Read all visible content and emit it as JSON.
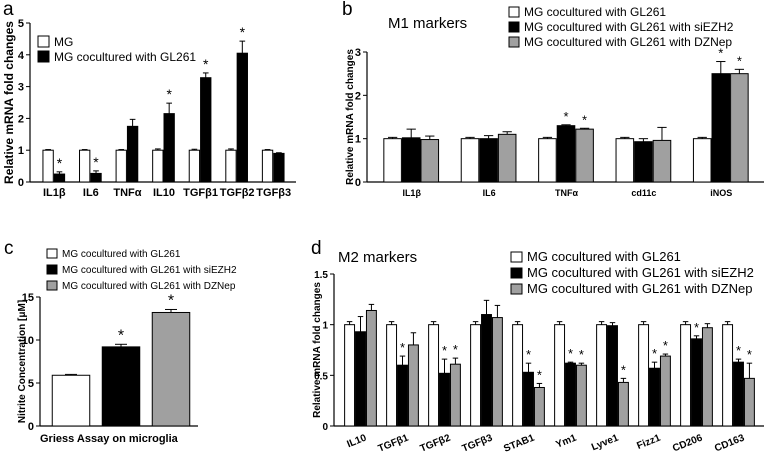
{
  "chart_data": [
    {
      "panel": "a",
      "type": "bar",
      "title": "",
      "ylabel": "Relative mRNA fold changes",
      "ylim": [
        0,
        5
      ],
      "yticks": [
        0,
        1,
        2,
        3,
        4,
        5
      ],
      "categories": [
        "IL1β",
        "IL6",
        "TNFα",
        "IL10",
        "TGFβ1",
        "TGFβ2",
        "TGFβ3"
      ],
      "series": [
        {
          "name": "MG",
          "color": "#ffffff",
          "values": [
            1.0,
            1.0,
            1.0,
            1.0,
            1.0,
            1.0,
            1.0
          ],
          "errors": [
            0.02,
            0.02,
            0.02,
            0.04,
            0.03,
            0.04,
            0.02
          ]
        },
        {
          "name": "MG cocultured with GL261",
          "color": "#000000",
          "values": [
            0.25,
            0.27,
            1.75,
            2.15,
            3.28,
            4.05,
            0.9
          ],
          "errors": [
            0.07,
            0.08,
            0.22,
            0.33,
            0.15,
            0.38,
            0.02
          ]
        }
      ],
      "significance": [
        [
          false,
          true
        ],
        [
          false,
          true
        ],
        [
          false,
          false
        ],
        [
          false,
          true
        ],
        [
          false,
          true
        ],
        [
          false,
          true
        ],
        [
          false,
          false
        ]
      ],
      "legend": "top-left"
    },
    {
      "panel": "b",
      "type": "bar",
      "title": "M1 markers",
      "ylabel": "Relative mRNA fold changes",
      "ylim": [
        0,
        3
      ],
      "yticks": [
        0,
        1,
        2,
        3
      ],
      "categories": [
        "IL1β",
        "IL6",
        "TNFα",
        "cd11c",
        "iNOS"
      ],
      "series": [
        {
          "name": "MG cocultured with GL261",
          "color": "#ffffff",
          "values": [
            1.0,
            1.0,
            1.0,
            1.0,
            1.0
          ],
          "errors": [
            0.03,
            0.03,
            0.03,
            0.03,
            0.03
          ]
        },
        {
          "name": "MG cocultured with GL261 with siEZH2",
          "color": "#000000",
          "values": [
            1.02,
            1.0,
            1.3,
            0.93,
            2.5
          ],
          "errors": [
            0.2,
            0.07,
            0.02,
            0.07,
            0.28
          ]
        },
        {
          "name": "MG cocultured with GL261 with DZNep",
          "color": "#a0a0a0",
          "values": [
            0.98,
            1.1,
            1.22,
            0.96,
            2.5
          ],
          "errors": [
            0.08,
            0.06,
            0.02,
            0.3,
            0.1
          ]
        }
      ],
      "significance": [
        [
          false,
          false,
          false
        ],
        [
          false,
          false,
          false
        ],
        [
          false,
          true,
          true
        ],
        [
          false,
          false,
          false
        ],
        [
          false,
          true,
          true
        ]
      ],
      "legend": "top-right"
    },
    {
      "panel": "c",
      "type": "bar",
      "title": "",
      "xlabel": "Griess Assay on microglia",
      "ylabel": "Nitrite Concentration [μM]",
      "ylim": [
        0,
        15
      ],
      "yticks": [
        0,
        5,
        10,
        15
      ],
      "categories": [
        "MG cocultured with GL261",
        "MG cocultured with GL261 with siEZH2",
        "MG cocultured with GL261 with DZNep"
      ],
      "values": [
        5.9,
        9.2,
        13.2
      ],
      "errors": [
        0.1,
        0.3,
        0.35
      ],
      "colors": [
        "#ffffff",
        "#000000",
        "#a0a0a0"
      ],
      "significance": [
        false,
        true,
        true
      ],
      "legend": "top"
    },
    {
      "panel": "d",
      "type": "bar",
      "title": "M2 markers",
      "ylabel": "Relative mRNA fold changes",
      "ylim": [
        0,
        1.5
      ],
      "yticks": [
        0.0,
        0.5,
        1.0,
        1.5
      ],
      "categories": [
        "IL10",
        "TGFβ1",
        "TGFβ2",
        "TGFβ3",
        "STAB1",
        "Ym1",
        "Lyve1",
        "Fizz1",
        "CD206",
        "CD163"
      ],
      "series": [
        {
          "name": "MG cocultured with GL261",
          "color": "#ffffff",
          "values": [
            1.0,
            1.0,
            1.0,
            1.0,
            1.0,
            1.0,
            1.0,
            1.0,
            1.0,
            1.0
          ],
          "errors": [
            0.03,
            0.03,
            0.03,
            0.03,
            0.03,
            0.03,
            0.03,
            0.03,
            0.03,
            0.03
          ]
        },
        {
          "name": "MG cocultured with GL261 with siEZH2",
          "color": "#000000",
          "values": [
            0.93,
            0.6,
            0.52,
            1.1,
            0.53,
            0.62,
            0.99,
            0.57,
            0.86,
            0.63
          ],
          "errors": [
            0.15,
            0.09,
            0.14,
            0.14,
            0.09,
            0.01,
            0.03,
            0.06,
            0.03,
            0.03
          ]
        },
        {
          "name": "MG cocultured with GL261 with DZNep",
          "color": "#a0a0a0",
          "values": [
            1.14,
            0.8,
            0.61,
            1.07,
            0.38,
            0.6,
            0.43,
            0.69,
            0.97,
            0.47
          ],
          "errors": [
            0.06,
            0.12,
            0.06,
            0.12,
            0.04,
            0.02,
            0.04,
            0.02,
            0.04,
            0.15
          ]
        }
      ],
      "significance": [
        [
          false,
          false,
          false
        ],
        [
          false,
          true,
          false
        ],
        [
          false,
          true,
          true
        ],
        [
          false,
          false,
          false
        ],
        [
          false,
          true,
          true
        ],
        [
          false,
          true,
          true
        ],
        [
          false,
          false,
          true
        ],
        [
          false,
          true,
          true
        ],
        [
          false,
          true,
          false
        ],
        [
          false,
          true,
          true
        ]
      ],
      "legend": "top-right"
    }
  ],
  "panel_labels": [
    "a",
    "b",
    "c",
    "d"
  ],
  "star": "*"
}
